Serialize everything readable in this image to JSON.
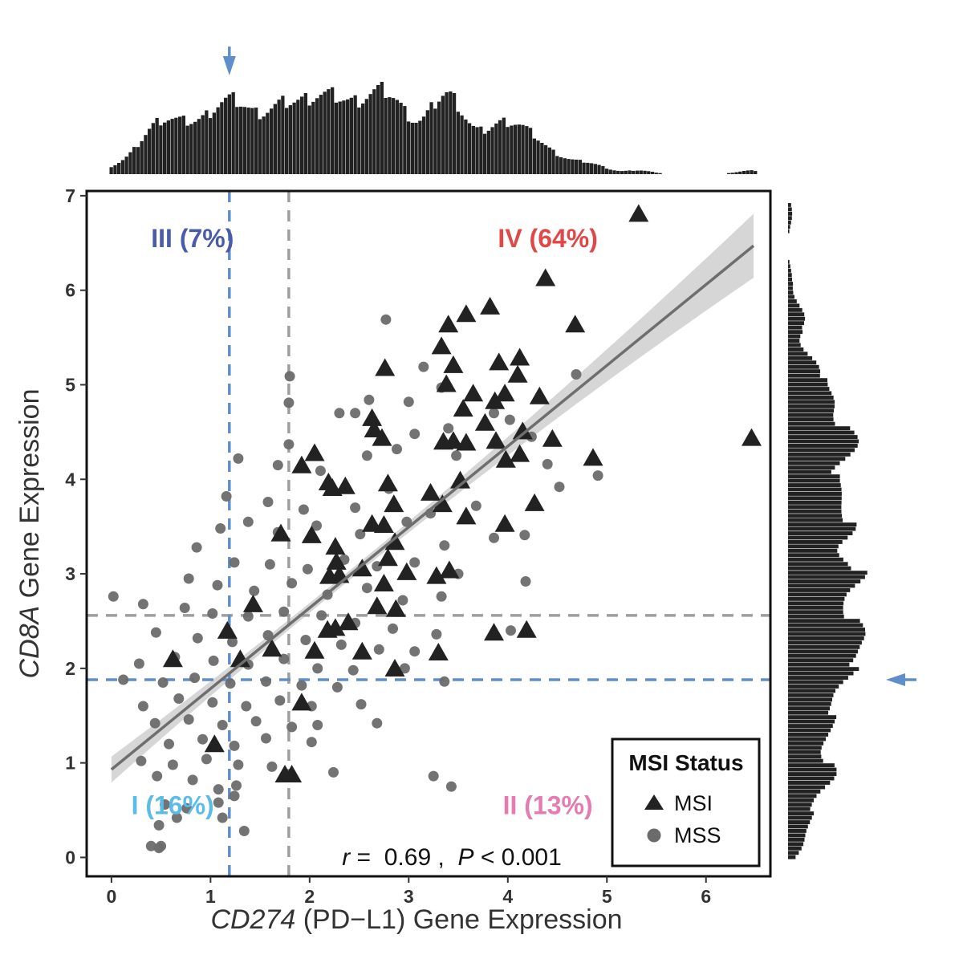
{
  "chart_data": {
    "type": "scatter",
    "xlabel_italic": "CD274",
    "xlabel_rest": " (PD−L1) Gene Expression",
    "ylabel_italic": "CD8A",
    "ylabel_rest": "  Gene Expression",
    "xlim": [
      -0.25,
      6.65
    ],
    "ylim": [
      -0.2,
      7.05
    ],
    "x_ticks": [
      "0",
      "1",
      "2",
      "3",
      "4",
      "5",
      "6"
    ],
    "y_ticks": [
      "0",
      "1",
      "2",
      "3",
      "4",
      "5",
      "6",
      "7"
    ],
    "grid": false,
    "quadrants": [
      {
        "label": "I (16%)",
        "color": "#5bbce8",
        "x": 0.2,
        "y": 0.55
      },
      {
        "label": "II (13%)",
        "color": "#e57bb0",
        "x": 3.95,
        "y": 0.55
      },
      {
        "label": "III (7%)",
        "color": "#4a5ba8",
        "x": 0.4,
        "y": 6.55
      },
      {
        "label": "IV (64%)",
        "color": "#e04848",
        "x": 3.9,
        "y": 6.55
      }
    ],
    "thresholds": {
      "blue_x": 1.19,
      "blue_y": 1.88,
      "gray_x": 1.79,
      "gray_y": 2.56,
      "blue_color": "#5f8fcb",
      "gray_color": "#9e9e9e"
    },
    "regression": {
      "x_start": 0.0,
      "x_end": 6.48,
      "intercept": 0.93,
      "slope": 0.855,
      "line_color": "#6e6e6e",
      "band_color": "#cfcfcf"
    },
    "annotation": {
      "r_symbol": "r",
      "r_text": " =  0.69 ,  ",
      "p_symbol": "P",
      "p_text": " < 0.001"
    },
    "legend": {
      "title": "MSI Status",
      "position": "bottom-right",
      "items": [
        {
          "label": "MSI",
          "shape": "triangle",
          "color": "#222222"
        },
        {
          "label": "MSS",
          "shape": "circle",
          "color": "#6b6b6b"
        }
      ]
    },
    "series": [
      {
        "name": "MSI",
        "shape": "triangle",
        "color": "#222222",
        "points": [
          [
            5.32,
            6.8
          ],
          [
            4.38,
            6.12
          ],
          [
            3.82,
            5.82
          ],
          [
            3.58,
            5.74
          ],
          [
            4.68,
            5.63
          ],
          [
            3.4,
            5.63
          ],
          [
            3.33,
            5.4
          ],
          [
            2.76,
            5.17
          ],
          [
            3.45,
            5.2
          ],
          [
            3.91,
            5.23
          ],
          [
            4.12,
            5.28
          ],
          [
            4.1,
            5.1
          ],
          [
            3.38,
            5.0
          ],
          [
            3.65,
            4.9
          ],
          [
            3.97,
            4.9
          ],
          [
            3.87,
            4.82
          ],
          [
            4.32,
            4.87
          ],
          [
            3.55,
            4.74
          ],
          [
            2.63,
            4.64
          ],
          [
            2.65,
            4.52
          ],
          [
            3.77,
            4.59
          ],
          [
            2.73,
            4.43
          ],
          [
            3.35,
            4.39
          ],
          [
            3.45,
            4.4
          ],
          [
            3.58,
            4.38
          ],
          [
            3.88,
            4.4
          ],
          [
            4.45,
            4.42
          ],
          [
            6.46,
            4.43
          ],
          [
            4.15,
            4.5
          ],
          [
            4.86,
            4.22
          ],
          [
            3.98,
            4.2
          ],
          [
            4.12,
            4.26
          ],
          [
            1.92,
            4.14
          ],
          [
            2.05,
            4.27
          ],
          [
            2.19,
            3.96
          ],
          [
            2.23,
            3.9
          ],
          [
            2.36,
            3.92
          ],
          [
            2.79,
            3.95
          ],
          [
            2.85,
            3.73
          ],
          [
            3.52,
            3.98
          ],
          [
            3.22,
            3.85
          ],
          [
            3.34,
            3.73
          ],
          [
            4.27,
            3.74
          ],
          [
            3.58,
            3.6
          ],
          [
            3.97,
            3.52
          ],
          [
            2.63,
            3.52
          ],
          [
            2.75,
            3.51
          ],
          [
            1.71,
            3.42
          ],
          [
            2.02,
            3.4
          ],
          [
            2.26,
            3.28
          ],
          [
            2.86,
            3.33
          ],
          [
            2.79,
            3.16
          ],
          [
            2.27,
            3.12
          ],
          [
            2.53,
            3.05
          ],
          [
            2.2,
            2.97
          ],
          [
            2.98,
            3.01
          ],
          [
            3.28,
            2.97
          ],
          [
            3.41,
            3.03
          ],
          [
            2.75,
            2.89
          ],
          [
            2.3,
            2.98
          ],
          [
            2.68,
            2.65
          ],
          [
            2.87,
            2.62
          ],
          [
            1.43,
            2.67
          ],
          [
            1.17,
            2.39
          ],
          [
            2.39,
            2.48
          ],
          [
            2.18,
            2.4
          ],
          [
            2.26,
            2.42
          ],
          [
            3.86,
            2.37
          ],
          [
            4.19,
            2.4
          ],
          [
            2.53,
            2.17
          ],
          [
            3.3,
            2.16
          ],
          [
            0.62,
            2.09
          ],
          [
            1.3,
            2.09
          ],
          [
            2.05,
            2.18
          ],
          [
            2.86,
            1.99
          ],
          [
            1.62,
            2.2
          ],
          [
            1.92,
            1.63
          ],
          [
            1.04,
            1.19
          ],
          [
            1.82,
            0.87
          ],
          [
            1.75,
            0.87
          ]
        ]
      },
      {
        "name": "MSS",
        "shape": "circle",
        "color": "#6b6b6b",
        "points": [
          [
            2.77,
            5.69
          ],
          [
            1.8,
            5.09
          ],
          [
            3.15,
            5.19
          ],
          [
            4.69,
            5.11
          ],
          [
            3.33,
            4.97
          ],
          [
            2.6,
            4.84
          ],
          [
            1.79,
            4.81
          ],
          [
            3.0,
            4.82
          ],
          [
            2.3,
            4.7
          ],
          [
            2.46,
            4.7
          ],
          [
            3.86,
            4.7
          ],
          [
            4.02,
            4.63
          ],
          [
            3.4,
            4.54
          ],
          [
            4.24,
            4.45
          ],
          [
            1.79,
            4.37
          ],
          [
            1.28,
            4.22
          ],
          [
            1.68,
            4.15
          ],
          [
            2.11,
            4.09
          ],
          [
            2.58,
            4.25
          ],
          [
            2.88,
            4.32
          ],
          [
            3.06,
            4.48
          ],
          [
            3.48,
            4.25
          ],
          [
            4.4,
            4.16
          ],
          [
            4.91,
            4.04
          ],
          [
            1.16,
            3.82
          ],
          [
            1.58,
            3.76
          ],
          [
            1.94,
            3.68
          ],
          [
            2.46,
            3.7
          ],
          [
            2.8,
            3.9
          ],
          [
            3.22,
            3.64
          ],
          [
            3.68,
            3.72
          ],
          [
            4.52,
            3.92
          ],
          [
            1.1,
            3.48
          ],
          [
            1.38,
            3.55
          ],
          [
            1.68,
            3.44
          ],
          [
            2.07,
            3.51
          ],
          [
            2.51,
            3.42
          ],
          [
            2.98,
            3.55
          ],
          [
            3.36,
            3.3
          ],
          [
            3.86,
            3.38
          ],
          [
            4.17,
            3.41
          ],
          [
            0.86,
            3.28
          ],
          [
            1.24,
            3.12
          ],
          [
            1.6,
            3.1
          ],
          [
            1.98,
            3.05
          ],
          [
            2.35,
            3.15
          ],
          [
            2.68,
            3.08
          ],
          [
            3.06,
            3.12
          ],
          [
            3.5,
            3.0
          ],
          [
            4.18,
            2.92
          ],
          [
            0.78,
            2.95
          ],
          [
            1.07,
            2.88
          ],
          [
            1.44,
            2.82
          ],
          [
            1.82,
            2.9
          ],
          [
            2.18,
            2.78
          ],
          [
            2.58,
            2.85
          ],
          [
            2.94,
            2.72
          ],
          [
            3.33,
            2.76
          ],
          [
            0.02,
            2.76
          ],
          [
            0.32,
            2.68
          ],
          [
            0.74,
            2.64
          ],
          [
            1.02,
            2.58
          ],
          [
            1.38,
            2.55
          ],
          [
            1.74,
            2.6
          ],
          [
            2.12,
            2.56
          ],
          [
            2.46,
            2.48
          ],
          [
            2.84,
            2.42
          ],
          [
            3.28,
            2.36
          ],
          [
            4.03,
            2.4
          ],
          [
            0.45,
            2.38
          ],
          [
            0.87,
            2.32
          ],
          [
            1.22,
            2.28
          ],
          [
            1.58,
            2.35
          ],
          [
            1.96,
            2.3
          ],
          [
            2.32,
            2.25
          ],
          [
            2.7,
            2.2
          ],
          [
            3.06,
            2.18
          ],
          [
            0.28,
            2.05
          ],
          [
            0.64,
            2.12
          ],
          [
            1.03,
            2.08
          ],
          [
            1.38,
            2.04
          ],
          [
            1.74,
            2.1
          ],
          [
            2.08,
            2.0
          ],
          [
            2.44,
            1.98
          ],
          [
            2.96,
            2.0
          ],
          [
            0.12,
            1.88
          ],
          [
            0.52,
            1.85
          ],
          [
            0.84,
            1.9
          ],
          [
            1.2,
            1.84
          ],
          [
            1.56,
            1.86
          ],
          [
            1.92,
            1.82
          ],
          [
            2.28,
            1.8
          ],
          [
            3.36,
            1.86
          ],
          [
            0.32,
            1.6
          ],
          [
            0.68,
            1.68
          ],
          [
            1.02,
            1.64
          ],
          [
            1.36,
            1.6
          ],
          [
            1.7,
            1.66
          ],
          [
            2.02,
            1.6
          ],
          [
            2.52,
            1.62
          ],
          [
            0.44,
            1.42
          ],
          [
            0.78,
            1.46
          ],
          [
            1.12,
            1.4
          ],
          [
            1.46,
            1.44
          ],
          [
            1.82,
            1.38
          ],
          [
            2.08,
            1.4
          ],
          [
            2.68,
            1.42
          ],
          [
            0.58,
            1.2
          ],
          [
            0.92,
            1.25
          ],
          [
            1.24,
            1.18
          ],
          [
            1.56,
            1.26
          ],
          [
            2.02,
            1.22
          ],
          [
            0.3,
            1.02
          ],
          [
            0.62,
            0.98
          ],
          [
            0.96,
            1.04
          ],
          [
            1.28,
            0.98
          ],
          [
            1.62,
            0.96
          ],
          [
            2.24,
            0.9
          ],
          [
            0.46,
            0.86
          ],
          [
            0.82,
            0.82
          ],
          [
            1.08,
            0.72
          ],
          [
            1.26,
            0.76
          ],
          [
            3.25,
            0.86
          ],
          [
            3.43,
            0.75
          ],
          [
            0.54,
            0.56
          ],
          [
            0.76,
            0.52
          ],
          [
            1.08,
            0.58
          ],
          [
            1.24,
            0.65
          ],
          [
            0.48,
            0.34
          ],
          [
            0.66,
            0.42
          ],
          [
            1.12,
            0.42
          ],
          [
            1.34,
            0.28
          ],
          [
            0.4,
            0.12
          ],
          [
            0.48,
            0.1
          ],
          [
            0.5,
            0.12
          ]
        ]
      }
    ]
  },
  "marginals": {
    "top_arrow_x": 1.19,
    "right_arrow_y": 1.88,
    "arrow_color": "#5f8fcb",
    "bar_color": "#222222"
  }
}
